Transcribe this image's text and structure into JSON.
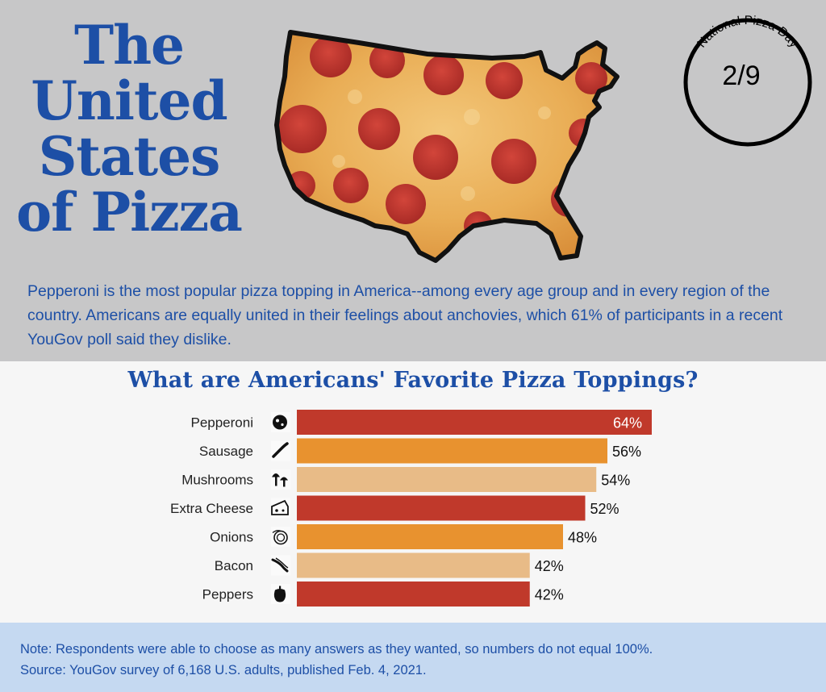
{
  "header": {
    "title": "The United States of Pizza",
    "badge_line": "National Pizza Day",
    "badge_date": "2/9"
  },
  "intro": "Pepperoni is the most popular pizza topping in America--among every age group and in every region of the country. Americans are equally united in their feelings about anchovies, which 61% of participants in a recent YouGov poll said they dislike.",
  "chart_data": {
    "type": "bar",
    "orientation": "horizontal",
    "title": "What are Americans' Favorite Pizza Toppings?",
    "categories": [
      "Pepperoni",
      "Sausage",
      "Mushrooms",
      "Extra Cheese",
      "Onions",
      "Bacon",
      "Peppers"
    ],
    "values": [
      64,
      56,
      54,
      52,
      48,
      42,
      42
    ],
    "value_labels": [
      "64%",
      "56%",
      "54%",
      "52%",
      "48%",
      "42%",
      "42%"
    ],
    "icons": [
      "pepperoni-icon",
      "sausage-icon",
      "mushroom-icon",
      "cheese-icon",
      "onion-icon",
      "bacon-icon",
      "pepper-icon"
    ],
    "colors": [
      "#c0392b",
      "#e8922f",
      "#e8bb87",
      "#c0392b",
      "#e8922f",
      "#e8bb87",
      "#c0392b"
    ],
    "xlim": [
      0,
      64
    ],
    "grid": false,
    "legend": "none"
  },
  "footer": {
    "note": "Note: Respondents were able to choose as many answers as they wanted, so numbers do not equal 100%.",
    "source": "Source: YouGov survey of 6,168 U.S. adults, published Feb. 4, 2021."
  },
  "colors": {
    "title_blue": "#1d4fa6",
    "top_bg": "#c7c7c8",
    "chart_bg": "#f6f6f6",
    "footer_bg": "#c5d9f1"
  }
}
